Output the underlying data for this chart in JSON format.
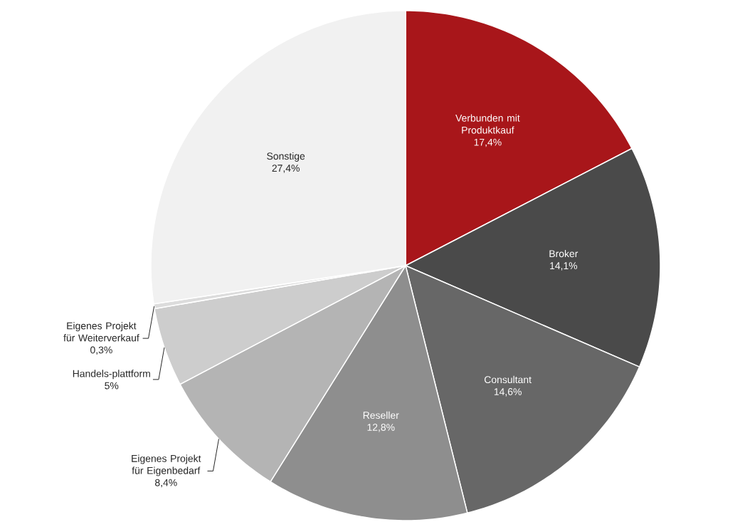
{
  "chart_data": {
    "type": "pie",
    "categories": [
      "Verbunden mit Produktkauf",
      "Broker",
      "Consultant",
      "Reseller",
      "Eigenes Projekt für Eigenbedarf",
      "Handels-plattform",
      "Eigenes Projekt für Weiterverkauf",
      "Sonstige"
    ],
    "values": [
      17.4,
      14.1,
      14.6,
      12.8,
      8.4,
      5,
      0.3,
      27.4
    ],
    "value_labels": [
      "17,4%",
      "14,1%",
      "14,6%",
      "12,8%",
      "8,4%",
      "5%",
      "0,3%",
      "27,4%"
    ],
    "colors": [
      "#a8161a",
      "#4a4a4a",
      "#676767",
      "#8e8e8e",
      "#b4b4b4",
      "#cdcdcd",
      "#dcdcdc",
      "#f1f1f1"
    ]
  }
}
